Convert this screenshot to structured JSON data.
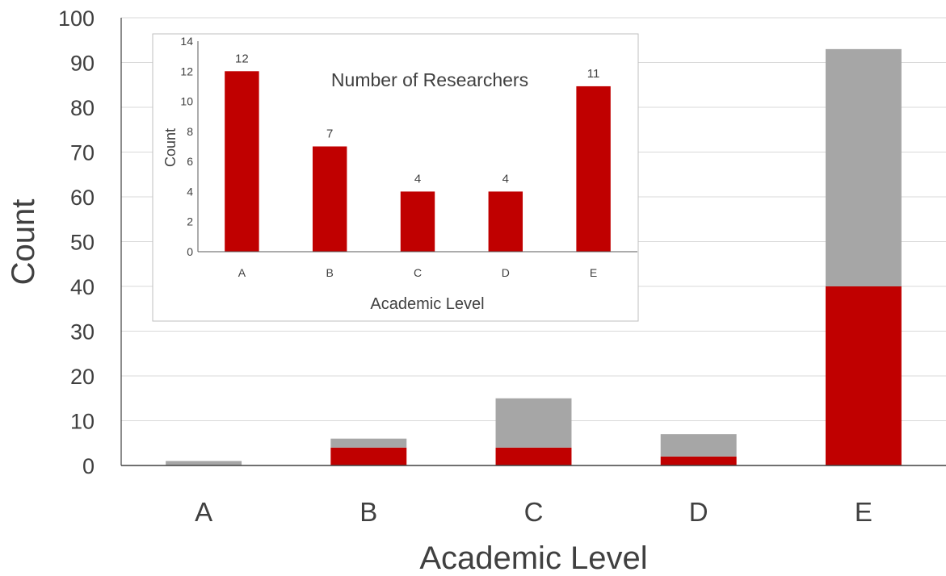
{
  "chart_data": [
    {
      "type": "bar",
      "stacked": true,
      "title": "",
      "xlabel": "Academic Level",
      "ylabel": "Count",
      "categories": [
        "A",
        "B",
        "C",
        "D",
        "E"
      ],
      "ylim": [
        0,
        100
      ],
      "yticks": [
        0,
        10,
        20,
        30,
        40,
        50,
        60,
        70,
        80,
        90,
        100
      ],
      "grid": true,
      "legend": "none",
      "series": [
        {
          "color": "#c00000",
          "values": [
            0,
            4,
            4,
            2,
            40
          ]
        },
        {
          "color": "#a6a6a6",
          "values": [
            1,
            2,
            11,
            5,
            53
          ]
        }
      ]
    },
    {
      "type": "bar",
      "inset": true,
      "title": "Number of Researchers",
      "xlabel": "Academic Level",
      "ylabel": "Count",
      "categories": [
        "A",
        "B",
        "C",
        "D",
        "E"
      ],
      "ylim": [
        0,
        14
      ],
      "yticks": [
        0,
        2,
        4,
        6,
        8,
        10,
        12,
        14
      ],
      "grid": false,
      "legend": "none",
      "data_labels": true,
      "series": [
        {
          "color": "#c00000",
          "values": [
            12,
            7,
            4,
            4,
            11
          ]
        }
      ]
    }
  ]
}
